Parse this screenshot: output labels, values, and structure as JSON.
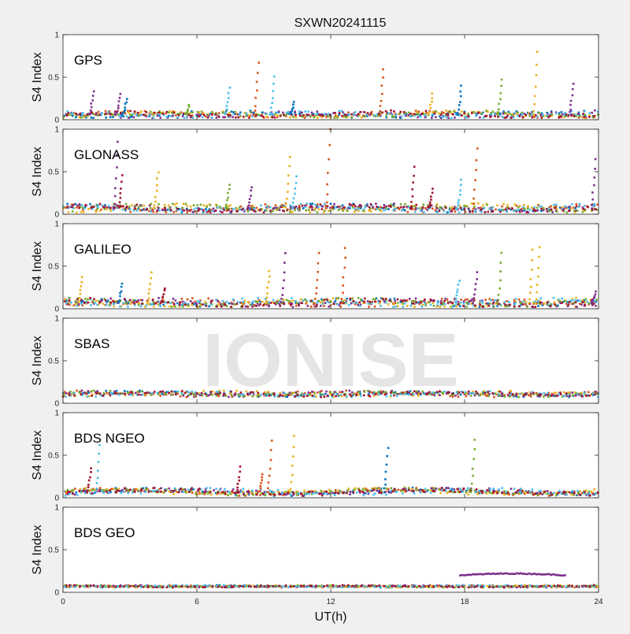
{
  "figure": {
    "title": "SXWN20241115",
    "xlabel": "UT(h)",
    "watermark": "IONISE"
  },
  "chart_data": {
    "type": "scatter",
    "title": "SXWN20241115",
    "xlabel": "UT(h)",
    "xlim": [
      0,
      24
    ],
    "xticks": [
      "0",
      "6",
      "12",
      "18",
      "24"
    ],
    "ylabel": "S4 Index",
    "ylim": [
      0,
      1
    ],
    "yticks": [
      "0",
      "0.5",
      "1"
    ],
    "grid": false,
    "colors": [
      "#0072BD",
      "#D95319",
      "#EDB120",
      "#7E2F8E",
      "#77AC30",
      "#4DBEEE",
      "#A2142F"
    ],
    "panels": [
      {
        "name": "GPS",
        "baseline": 0.06,
        "spread": 0.05,
        "spikes": [
          {
            "x": 1.3,
            "y": 0.33,
            "s": 3
          },
          {
            "x": 2.5,
            "y": 0.3,
            "s": 3
          },
          {
            "x": 2.8,
            "y": 0.25,
            "s": 0
          },
          {
            "x": 5.6,
            "y": 0.17,
            "s": 4
          },
          {
            "x": 7.4,
            "y": 0.38,
            "s": 5
          },
          {
            "x": 8.7,
            "y": 0.68,
            "s": 1
          },
          {
            "x": 9.4,
            "y": 0.5,
            "s": 5
          },
          {
            "x": 10.3,
            "y": 0.2,
            "s": 0
          },
          {
            "x": 14.3,
            "y": 0.6,
            "s": 1
          },
          {
            "x": 16.5,
            "y": 0.3,
            "s": 2
          },
          {
            "x": 17.8,
            "y": 0.4,
            "s": 0
          },
          {
            "x": 19.6,
            "y": 0.47,
            "s": 4
          },
          {
            "x": 21.2,
            "y": 0.8,
            "s": 2
          },
          {
            "x": 22.8,
            "y": 0.42,
            "s": 3
          }
        ]
      },
      {
        "name": "GLONASS",
        "baseline": 0.07,
        "spread": 0.06,
        "spikes": [
          {
            "x": 2.4,
            "y": 0.85,
            "s": 3
          },
          {
            "x": 2.6,
            "y": 0.45,
            "s": 6
          },
          {
            "x": 4.2,
            "y": 0.5,
            "s": 2
          },
          {
            "x": 7.4,
            "y": 0.35,
            "s": 4
          },
          {
            "x": 8.4,
            "y": 0.32,
            "s": 3
          },
          {
            "x": 10.1,
            "y": 0.68,
            "s": 2
          },
          {
            "x": 10.4,
            "y": 0.45,
            "s": 5
          },
          {
            "x": 11.9,
            "y": 1.0,
            "s": 1
          },
          {
            "x": 15.7,
            "y": 0.55,
            "s": 6
          },
          {
            "x": 16.5,
            "y": 0.3,
            "s": 6
          },
          {
            "x": 17.8,
            "y": 0.4,
            "s": 5
          },
          {
            "x": 18.5,
            "y": 0.78,
            "s": 1
          },
          {
            "x": 23.8,
            "y": 0.65,
            "s": 3
          }
        ]
      },
      {
        "name": "GALILEO",
        "baseline": 0.07,
        "spread": 0.06,
        "spikes": [
          {
            "x": 0.8,
            "y": 0.38,
            "s": 2
          },
          {
            "x": 2.6,
            "y": 0.3,
            "s": 0
          },
          {
            "x": 3.9,
            "y": 0.42,
            "s": 2
          },
          {
            "x": 4.5,
            "y": 0.24,
            "s": 6
          },
          {
            "x": 9.2,
            "y": 0.45,
            "s": 2
          },
          {
            "x": 9.9,
            "y": 0.65,
            "s": 3
          },
          {
            "x": 11.4,
            "y": 0.65,
            "s": 1
          },
          {
            "x": 12.6,
            "y": 0.72,
            "s": 1
          },
          {
            "x": 17.7,
            "y": 0.33,
            "s": 5
          },
          {
            "x": 18.5,
            "y": 0.42,
            "s": 3
          },
          {
            "x": 19.6,
            "y": 0.65,
            "s": 4
          },
          {
            "x": 21.0,
            "y": 0.7,
            "s": 2
          },
          {
            "x": 21.3,
            "y": 0.73,
            "s": 2
          },
          {
            "x": 23.8,
            "y": 0.2,
            "s": 3
          }
        ]
      },
      {
        "name": "SBAS",
        "baseline": 0.11,
        "spread": 0.04,
        "spikes": []
      },
      {
        "name": "BDS NGEO",
        "baseline": 0.07,
        "spread": 0.05,
        "spikes": [
          {
            "x": 1.2,
            "y": 0.35,
            "s": 6
          },
          {
            "x": 1.6,
            "y": 0.62,
            "s": 5
          },
          {
            "x": 7.9,
            "y": 0.36,
            "s": 6
          },
          {
            "x": 8.9,
            "y": 0.28,
            "s": 1
          },
          {
            "x": 9.3,
            "y": 0.68,
            "s": 1
          },
          {
            "x": 10.3,
            "y": 0.72,
            "s": 2
          },
          {
            "x": 14.5,
            "y": 0.58,
            "s": 0
          },
          {
            "x": 18.4,
            "y": 0.68,
            "s": 4
          }
        ]
      },
      {
        "name": "BDS GEO",
        "baseline": 0.07,
        "spread": 0.015,
        "spikes": [],
        "arc": {
          "x0": 17.8,
          "x1": 22.5,
          "y0": 0.2,
          "y1": 0.22,
          "s": 3
        }
      }
    ]
  }
}
